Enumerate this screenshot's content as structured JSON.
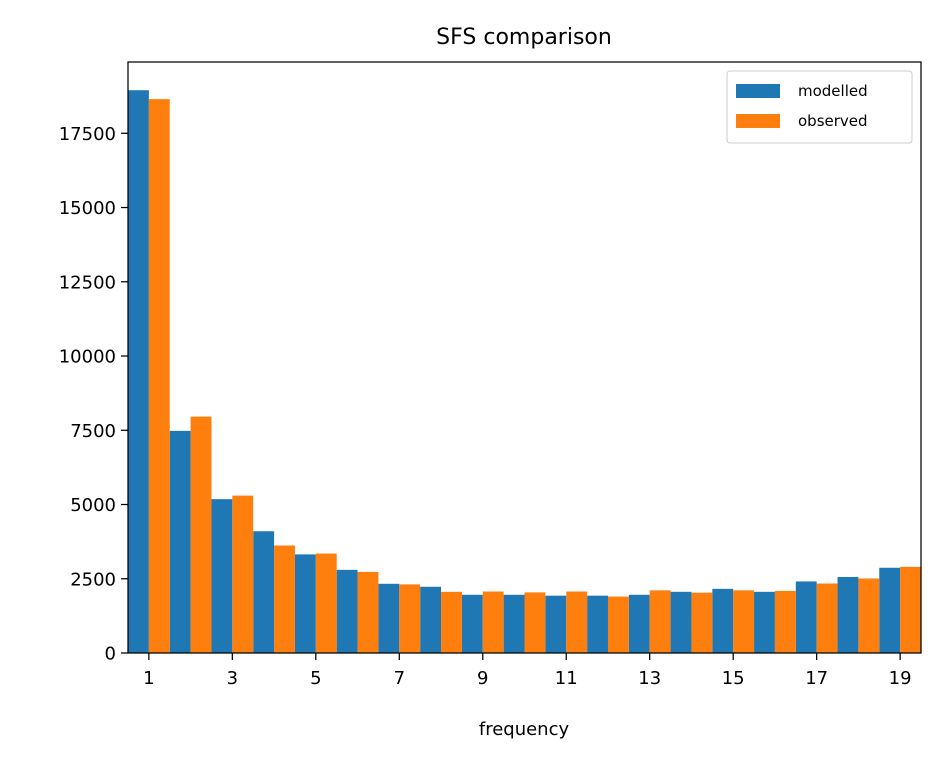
{
  "chart_data": {
    "type": "bar",
    "title": "SFS comparison",
    "xlabel": "frequency",
    "ylabel": "",
    "categories": [
      1,
      2,
      3,
      4,
      5,
      6,
      7,
      8,
      9,
      10,
      11,
      12,
      13,
      14,
      15,
      16,
      17,
      18,
      19
    ],
    "xtick_labels": [
      "1",
      "3",
      "5",
      "7",
      "9",
      "11",
      "13",
      "15",
      "17",
      "19"
    ],
    "yticks": [
      0,
      2500,
      5000,
      7500,
      10000,
      12500,
      15000,
      17500
    ],
    "ytick_labels": [
      "0",
      "2500",
      "5000",
      "7500",
      "10000",
      "12500",
      "15000",
      "17500"
    ],
    "ylim": [
      0,
      19900
    ],
    "grid": false,
    "legend_position": "top-right",
    "series": [
      {
        "name": "modelled",
        "color": "#1f77b4",
        "values": [
          18950,
          7480,
          5180,
          4100,
          3320,
          2800,
          2330,
          2230,
          1960,
          1960,
          1930,
          1930,
          1960,
          2060,
          2160,
          2060,
          2410,
          2560,
          2870
        ]
      },
      {
        "name": "observed",
        "color": "#ff7f0e",
        "values": [
          18650,
          7960,
          5300,
          3620,
          3350,
          2730,
          2310,
          2060,
          2070,
          2040,
          2070,
          1900,
          2110,
          2030,
          2110,
          2090,
          2340,
          2510,
          2900
        ]
      }
    ]
  }
}
